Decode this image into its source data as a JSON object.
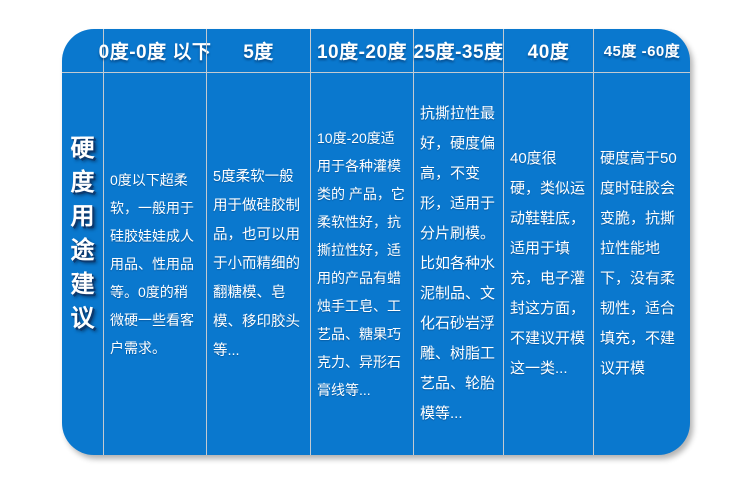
{
  "table": {
    "row_header": {
      "label": "硬度用途建议",
      "chars": [
        "硬",
        "度",
        "用",
        "途",
        "建",
        "议"
      ]
    },
    "columns": [
      {
        "header": "0度-0度 以下",
        "body": "0度以下超柔软，一般用于硅胶娃娃成人用品、性用品等。0度的稍微硬一些看客户需求。"
      },
      {
        "header": "5度",
        "body": "5度柔软一般用于做硅胶制品，也可以用于小而精细的翻糖模、皂模、移印胶头等..."
      },
      {
        "header": "10度-20度",
        "body": "10度-20度适用于各种灌模类的 产品，它柔软性好，抗撕拉性好，适用的产品有蜡烛手工皂、工艺品、糖果巧克力、异形石膏线等..."
      },
      {
        "header": "25度-35度",
        "body": "抗撕拉性最好，硬度偏高，不变形，适用于分片刷模。比如各种水泥制品、文化石砂岩浮雕、树脂工艺品、轮胎模等..."
      },
      {
        "header": "40度",
        "body": "40度很 硬，类似运动鞋鞋底，适用于填充，电子灌封这方面，不建议开模这一类..."
      },
      {
        "header": "45度 -60度",
        "body": "硬度高于50度时硅胶会变脆，抗撕拉性能地下，没有柔韧性，适合填充，不建议开模"
      }
    ]
  },
  "colors": {
    "table_blue": "#0a78ce",
    "grid_line": "#c3cad1",
    "text": "#ffffff",
    "page_background": "#ffffff"
  }
}
